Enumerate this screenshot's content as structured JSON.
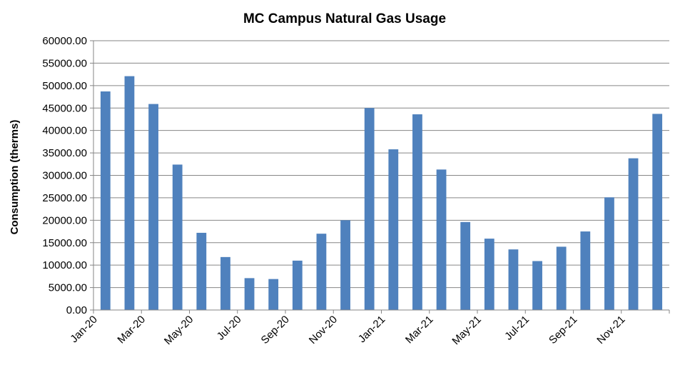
{
  "colors": {
    "bar": "#4f81bd",
    "grid": "#868686",
    "text": "#000000"
  },
  "chart_data": {
    "type": "bar",
    "title": "MC Campus Natural Gas Usage",
    "xlabel": "",
    "ylabel": "Consumption (therms)",
    "ylim": [
      0,
      60000
    ],
    "ytick_step": 5000,
    "yticks": [
      "0.00",
      "5000.00",
      "10000.00",
      "15000.00",
      "20000.00",
      "25000.00",
      "30000.00",
      "35000.00",
      "40000.00",
      "45000.00",
      "50000.00",
      "55000.00",
      "60000.00"
    ],
    "grid": true,
    "legend": "none",
    "categories": [
      "Jan-20",
      "Feb-20",
      "Mar-20",
      "Apr-20",
      "May-20",
      "Jun-20",
      "Jul-20",
      "Aug-20",
      "Sep-20",
      "Oct-20",
      "Nov-20",
      "Dec-20",
      "Jan-21",
      "Feb-21",
      "Mar-21",
      "Apr-21",
      "May-21",
      "Jun-21",
      "Jul-21",
      "Aug-21",
      "Sep-21",
      "Oct-21",
      "Nov-21",
      "Dec-21"
    ],
    "visible_tick_labels": [
      "Jan-20",
      "Mar-20",
      "May-20",
      "Jul-20",
      "Sep-20",
      "Nov-20",
      "Jan-21",
      "Mar-21",
      "May-21",
      "Jul-21",
      "Sep-21",
      "Nov-21"
    ],
    "values": [
      48700,
      52100,
      45900,
      32400,
      17200,
      11800,
      7100,
      6900,
      11000,
      17000,
      20000,
      45000,
      35800,
      43600,
      31300,
      19600,
      15900,
      13500,
      10900,
      14100,
      17500,
      25100,
      33800,
      43700
    ]
  }
}
